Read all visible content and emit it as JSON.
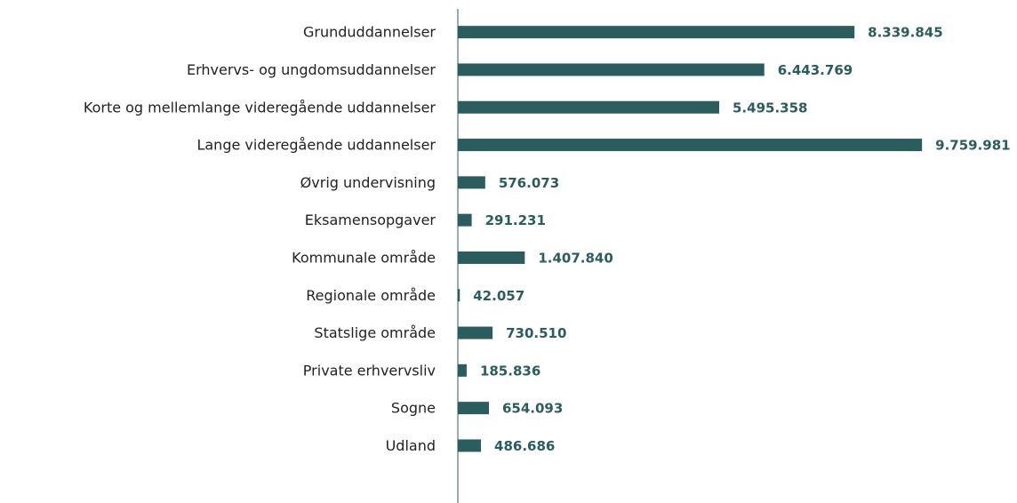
{
  "chart_data": {
    "type": "bar",
    "orientation": "horizontal",
    "color": "#2b5c5e",
    "categories": [
      "Grunduddannelser",
      "Erhvervs- og ungdomsuddannelser",
      "Korte og mellemlange videregående uddannelser",
      "Lange videregående uddannelser",
      "Øvrig undervisning",
      "Eksamensopgaver",
      "Kommunale område",
      "Regionale område",
      "Statslige område",
      "Private erhvervsliv",
      "Sogne",
      "Udland"
    ],
    "values": [
      8339845,
      6443769,
      5495358,
      9759981,
      576073,
      291231,
      1407840,
      42057,
      730510,
      185836,
      654093,
      486686
    ],
    "value_labels": [
      "8.339.845",
      "6.443.769",
      "5.495.358",
      "9.759.981",
      "576.073",
      "291.231",
      "1.407.840",
      "42.057",
      "730.510",
      "185.836",
      "654.093",
      "486.686"
    ],
    "xlim": [
      0,
      10000000
    ]
  }
}
